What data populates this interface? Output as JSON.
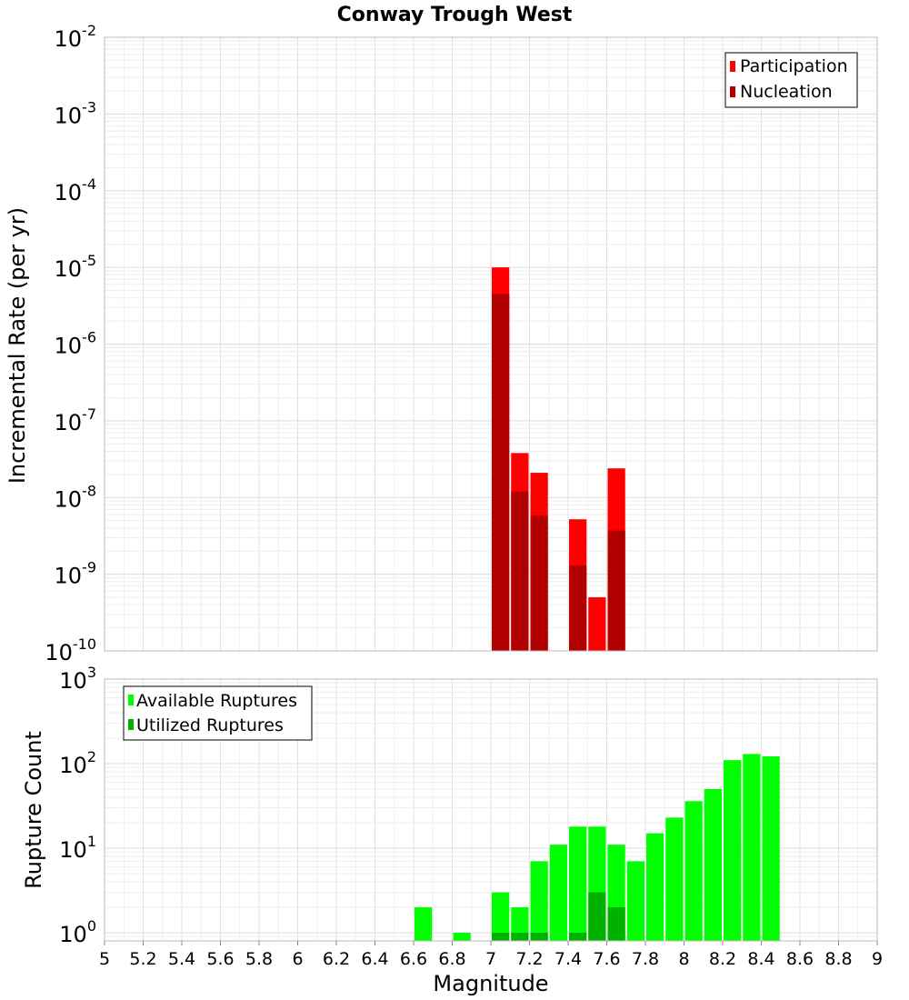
{
  "chart_data": [
    {
      "type": "bar",
      "title": "Conway Trough West",
      "ylabel": "Incremental Rate (per yr)",
      "xlabel": "",
      "y_scale": "log",
      "ylim": [
        1e-10,
        0.01
      ],
      "xlim": [
        5,
        9
      ],
      "bar_width": 0.1,
      "y_tick_exponents": [
        "-10",
        "-9",
        "-8",
        "-7",
        "-6",
        "-5",
        "-4",
        "-3",
        "-2"
      ],
      "y_tick_base": "10",
      "grid": true,
      "legend_position": "top-right",
      "legend": [
        "Participation",
        "Nucleation"
      ],
      "series": [
        {
          "name": "Participation",
          "color": "#ff0000",
          "x": [
            7.05,
            7.15,
            7.25,
            7.45,
            7.55,
            7.65
          ],
          "values": [
            1e-05,
            3.8e-08,
            2.1e-08,
            5.2e-09,
            5e-10,
            2.4e-08
          ]
        },
        {
          "name": "Nucleation",
          "color": "#b20000",
          "x": [
            7.05,
            7.15,
            7.25,
            7.45,
            7.55,
            7.65
          ],
          "values": [
            4.5e-06,
            1.2e-08,
            5.8e-09,
            1.3e-09,
            1e-10,
            3.7e-09
          ]
        }
      ]
    },
    {
      "type": "bar",
      "title": "",
      "ylabel": "Rupture Count",
      "xlabel": "Magnitude",
      "y_scale": "log",
      "ylim": [
        0.8,
        1000
      ],
      "xlim": [
        5,
        9
      ],
      "bar_width": 0.1,
      "y_tick_exponents": [
        "0",
        "1",
        "2",
        "3"
      ],
      "y_tick_base": "10",
      "x_ticks": [
        "5",
        "5.2",
        "5.4",
        "5.6",
        "5.8",
        "6",
        "6.2",
        "6.4",
        "6.6",
        "6.8",
        "7",
        "7.2",
        "7.4",
        "7.6",
        "7.8",
        "8",
        "8.2",
        "8.4",
        "8.6",
        "8.8",
        "9"
      ],
      "grid": true,
      "legend_position": "top-left",
      "legend": [
        "Available Ruptures",
        "Utilized Ruptures"
      ],
      "series": [
        {
          "name": "Available Ruptures",
          "color": "#00ff00",
          "x": [
            6.65,
            6.85,
            7.05,
            7.15,
            7.25,
            7.35,
            7.45,
            7.55,
            7.65,
            7.75,
            7.85,
            7.95,
            8.05,
            8.15,
            8.25,
            8.35,
            8.45
          ],
          "values": [
            2,
            1,
            3,
            2,
            7,
            11,
            18,
            18,
            11,
            7,
            15,
            23,
            36,
            50,
            110,
            130,
            122
          ]
        },
        {
          "name": "Utilized Ruptures",
          "color": "#00b200",
          "x": [
            7.05,
            7.15,
            7.25,
            7.45,
            7.55,
            7.65
          ],
          "values": [
            1,
            1,
            1,
            1,
            3,
            2
          ]
        }
      ]
    }
  ]
}
